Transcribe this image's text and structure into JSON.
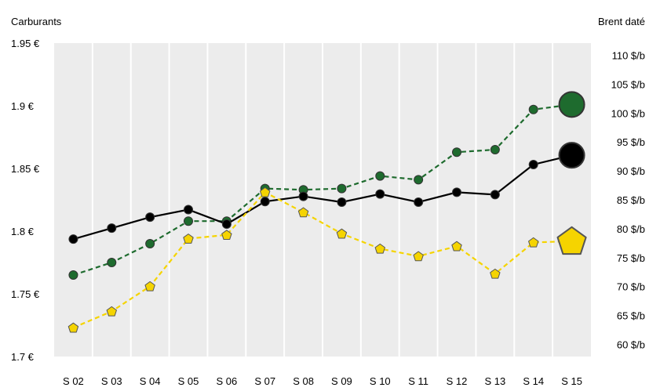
{
  "chart_data": {
    "type": "line",
    "categories": [
      "S 02",
      "S 03",
      "S 04",
      "S 05",
      "S 06",
      "S 07",
      "S 08",
      "S 09",
      "S 10",
      "S 11",
      "S 12",
      "S 13",
      "S 14",
      "S 15"
    ],
    "left_axis": {
      "title": "Carburants",
      "ylim": [
        1.7,
        1.95
      ],
      "ticks": [
        1.7,
        1.75,
        1.8,
        1.85,
        1.9,
        1.95
      ],
      "tick_labels": [
        "1.7 €",
        "1.75 €",
        "1.8 €",
        "1.85 €",
        "1.9 €",
        "1.95 €"
      ]
    },
    "right_axis": {
      "title": "Brent daté",
      "ylim": [
        57.9,
        112.1
      ],
      "ticks": [
        60,
        65,
        70,
        75,
        80,
        85,
        90,
        95,
        100,
        105,
        110
      ],
      "tick_labels": [
        "60 $/b",
        "65 $/b",
        "70 $/b",
        "75 $/b",
        "80 $/b",
        "85 $/b",
        "90 $/b",
        "95 $/b",
        "100 $/b",
        "105 $/b",
        "110 $/b"
      ]
    },
    "series": [
      {
        "axis": "left",
        "color": "#1e6b2e",
        "line_style": "dashed",
        "marker": "circle",
        "values": [
          1.765,
          1.775,
          1.79,
          1.808,
          1.808,
          1.834,
          1.833,
          1.834,
          1.844,
          1.841,
          1.863,
          1.865,
          1.897,
          1.901
        ]
      },
      {
        "axis": "right",
        "color": "#000000",
        "line_style": "solid",
        "marker": "circle",
        "values": [
          78.2,
          80.1,
          82.0,
          83.3,
          80.8,
          84.7,
          85.6,
          84.6,
          86.0,
          84.6,
          86.3,
          85.9,
          91.1,
          92.7
        ]
      },
      {
        "axis": "left",
        "color": "#f5d400",
        "line_style": "dashed",
        "marker": "pentagon",
        "values": [
          1.723,
          1.736,
          1.756,
          1.794,
          1.797,
          1.831,
          1.815,
          1.798,
          1.786,
          1.78,
          1.788,
          1.766,
          1.791,
          1.792
        ]
      }
    ],
    "plot_background": "#ececec",
    "gridlines": "vertical-white",
    "last_point_emphasized": true
  }
}
